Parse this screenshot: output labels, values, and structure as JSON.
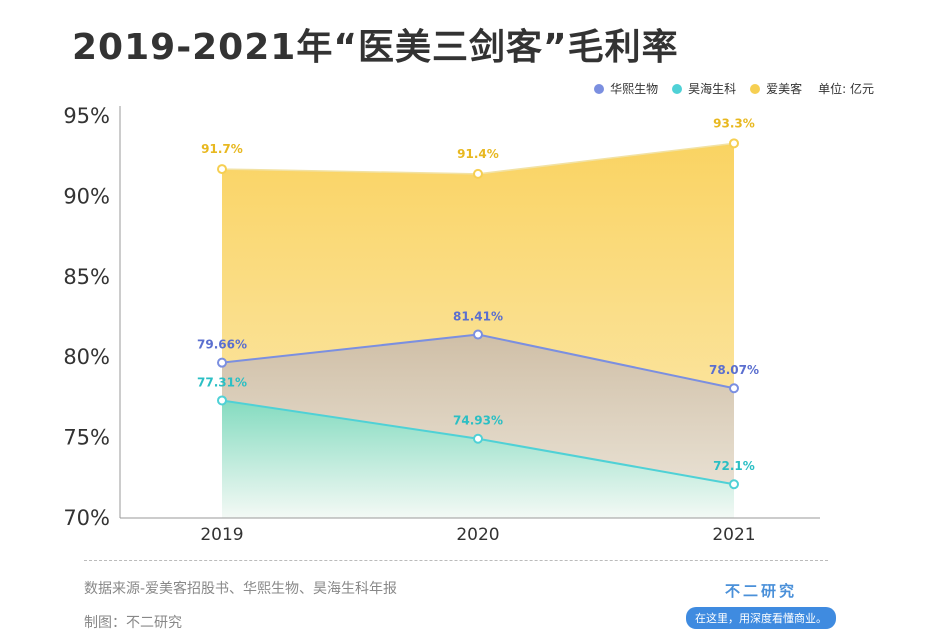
{
  "title": "2019-2021年“医美三剑客”毛利率",
  "unit": "单位: 亿元",
  "source": "数据来源-爱美客招股书、华熙生物、昊海生科年报",
  "maker": "制图：不二研究",
  "brand": {
    "name": "不二研究",
    "slogan": "在这里，用深度看懂商业。"
  },
  "chart_data": {
    "type": "area",
    "x": [
      "2019",
      "2020",
      "2021"
    ],
    "ylim": [
      70,
      95
    ],
    "yticks": [
      "70%",
      "75%",
      "80%",
      "85%",
      "90%",
      "95%"
    ],
    "yticks_values": [
      70,
      75,
      80,
      85,
      90,
      95
    ],
    "legend_position": "top-right",
    "grid": false,
    "series": [
      {
        "name": "华熙生物",
        "values": [
          79.66,
          81.41,
          78.07
        ],
        "labels": [
          "79.66%",
          "81.41%",
          "78.07%"
        ],
        "color": "#7b8fe0",
        "label_color": "#5b6fcf"
      },
      {
        "name": "昊海生科",
        "values": [
          77.31,
          74.93,
          72.1
        ],
        "labels": [
          "77.31%",
          "74.93%",
          "72.1%"
        ],
        "color": "#4fd1d6",
        "label_color": "#2bbfc4"
      },
      {
        "name": "爱美客",
        "values": [
          91.7,
          91.4,
          93.3
        ],
        "labels": [
          "91.7%",
          "91.4%",
          "93.3%"
        ],
        "color": "#f6cf52",
        "label_color": "#e8b820"
      }
    ]
  }
}
